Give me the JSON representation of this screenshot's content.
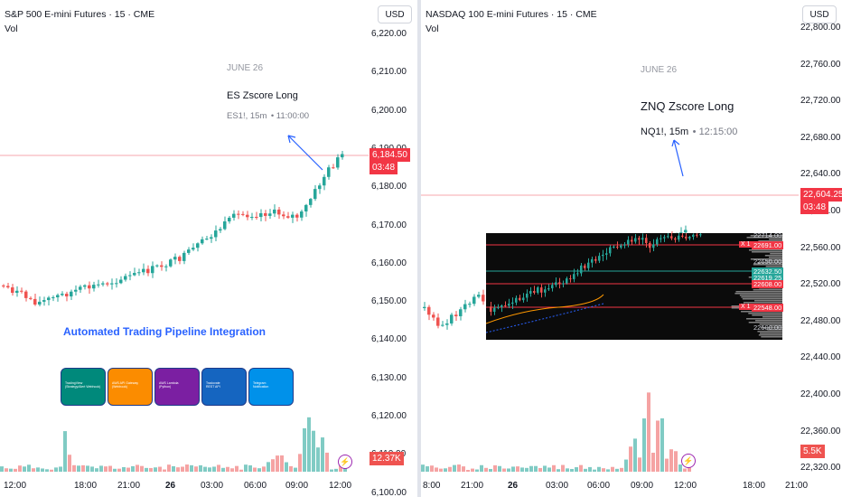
{
  "colors": {
    "up": "#26a69a",
    "down": "#ef5350",
    "accent": "#2962ff",
    "badge": "#f23645",
    "vol_up": "#80cbc4",
    "vol_down": "#f5a3a3"
  },
  "left": {
    "title": "S&P 500 E-mini Futures · 15 · CME",
    "vol_label": "Vol",
    "currency": "USD",
    "price_labels": [
      "6,220.00",
      "6,210.00",
      "6,200.00",
      "6,190.00",
      "6,180.00",
      "6,170.00",
      "6,160.00",
      "6,150.00",
      "6,140.00",
      "6,130.00",
      "6,120.00",
      "6,110.00",
      "6,100.00"
    ],
    "last_price": "6,184.50",
    "countdown": "03:48",
    "volume_value": "12.37K",
    "time_labels": [
      {
        "text": "12:00",
        "bold": false
      },
      {
        "text": "18:00",
        "bold": false
      },
      {
        "text": "21:00",
        "bold": false
      },
      {
        "text": "26",
        "bold": true
      },
      {
        "text": "03:00",
        "bold": false
      },
      {
        "text": "06:00",
        "bold": false
      },
      {
        "text": "09:00",
        "bold": false
      },
      {
        "text": "12:00",
        "bold": false
      }
    ],
    "annotation": {
      "date": "JUNE 26",
      "title": "ES Zscore Long",
      "symbol": "ES1!, 15m",
      "time": "11:00:00"
    },
    "pipeline_title": "Automated Trading Pipeline Integration",
    "pipeline_cards": [
      {
        "color": "#00897b",
        "l1": "TradingView",
        "l2": "(Strategy/Alert Webhook)"
      },
      {
        "color": "#fb8c00",
        "l1": "AWS API Gateway",
        "l2": "(Webhook)"
      },
      {
        "color": "#7b1fa2",
        "l1": "AWS Lambda",
        "l2": "(Python)"
      },
      {
        "color": "#1565c0",
        "l1": "Tradovate",
        "l2": "REST API"
      },
      {
        "color": "#0091ea",
        "l1": "Telegram",
        "l2": "Notification"
      }
    ]
  },
  "right": {
    "title": "NASDAQ 100 E-mini Futures · 15 · CME",
    "vol_label": "Vol",
    "currency": "USD",
    "price_labels": [
      "22,800.00",
      "22,760.00",
      "22,720.00",
      "22,680.00",
      "22,640.00",
      "22,600.00",
      "22,560.00",
      "22,520.00",
      "22,480.00",
      "22,440.00",
      "22,400.00",
      "22,360.00",
      "22,320.00"
    ],
    "last_price": "22,604.25",
    "countdown": "03:48",
    "volume_value": "5.5K",
    "time_labels": [
      {
        "text": "8:00",
        "bold": false
      },
      {
        "text": "21:00",
        "bold": false
      },
      {
        "text": "26",
        "bold": true
      },
      {
        "text": "03:00",
        "bold": false
      },
      {
        "text": "06:00",
        "bold": false
      },
      {
        "text": "09:00",
        "bold": false
      },
      {
        "text": "12:00",
        "bold": false
      },
      {
        "text": "18:00",
        "bold": false
      },
      {
        "text": "21:00",
        "bold": false
      }
    ],
    "annotation": {
      "date": "JUNE 26",
      "title": "ZNQ Zscore Long",
      "symbol": "NQ1!, 15m",
      "time": "12:15:00"
    },
    "overlay": {
      "levels": [
        "22714.00",
        "22691.00",
        "22650.00",
        "22632.50",
        "22619.25",
        "22608.00",
        "22548.00",
        "22500.00"
      ],
      "x_marks": [
        "X 1",
        "X 1"
      ]
    }
  }
}
